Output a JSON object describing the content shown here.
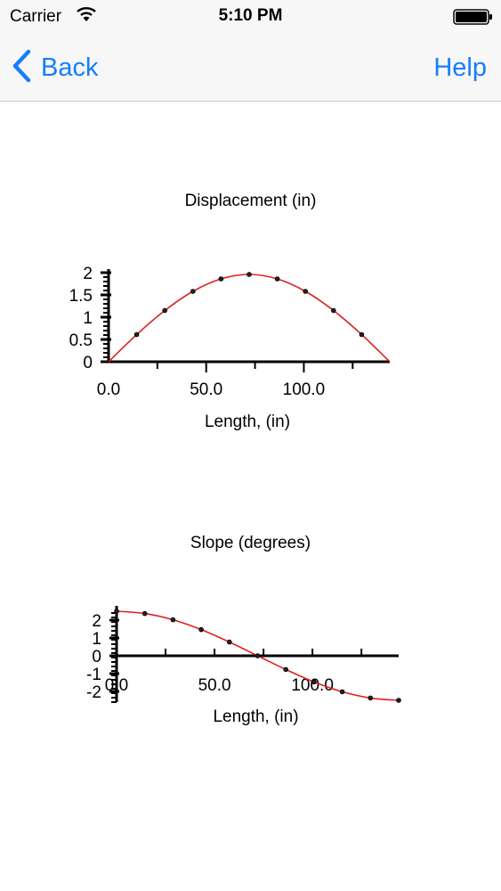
{
  "status_bar": {
    "carrier": "Carrier",
    "time": "5:10 PM",
    "icons": [
      "wifi-icon",
      "battery-icon"
    ]
  },
  "nav": {
    "back_label": "Back",
    "help_label": "Help",
    "accent_color": "#157efb"
  },
  "chart_data": [
    {
      "type": "line",
      "title": "Displacement (in)",
      "xlabel": "Length, (in)",
      "ylabel": "",
      "xlim": [
        0,
        144
      ],
      "ylim": [
        0,
        2
      ],
      "x_tick_labels": [
        "0.0",
        "50.0",
        "100.0"
      ],
      "x_tick_label_values": [
        0,
        50,
        100
      ],
      "x_minor_ticks": [
        25,
        75,
        125
      ],
      "y_tick_labels": [
        "0",
        "0.5",
        "1",
        "1.5",
        "2"
      ],
      "y_tick_label_values": [
        0,
        0.5,
        1,
        1.5,
        2
      ],
      "y_minor_step": 0.1,
      "line_color": "#e02020",
      "series": [
        {
          "x": [
            0,
            14.4,
            28.8,
            43.2,
            57.6,
            72,
            86.4,
            100.8,
            115.2,
            129.6,
            144
          ],
          "y": [
            0,
            0.61,
            1.15,
            1.58,
            1.86,
            1.96,
            1.86,
            1.58,
            1.15,
            0.61,
            0
          ]
        }
      ]
    },
    {
      "type": "line",
      "title": "Slope (degrees)",
      "xlabel": "Length, (in)",
      "ylabel": "",
      "xlim": [
        0,
        144
      ],
      "ylim": [
        -2.6,
        2.6
      ],
      "x_tick_labels": [
        "0.0",
        "50.0",
        "100.0"
      ],
      "x_tick_label_values": [
        0,
        50,
        100
      ],
      "x_minor_ticks": [
        25,
        75,
        125
      ],
      "y_tick_labels": [
        "2",
        "1",
        "0",
        "-1",
        "-2"
      ],
      "y_tick_label_values": [
        2,
        1,
        0,
        -1,
        -2
      ],
      "y_minor_step": 0.25,
      "line_color": "#e02020",
      "series": [
        {
          "x": [
            0,
            14.4,
            28.8,
            43.2,
            57.6,
            72,
            86.4,
            100.8,
            115.2,
            129.6,
            144
          ],
          "y": [
            2.5,
            2.37,
            2.02,
            1.47,
            0.77,
            0,
            -0.77,
            -1.47,
            -2.02,
            -2.37,
            -2.5
          ]
        }
      ]
    }
  ]
}
